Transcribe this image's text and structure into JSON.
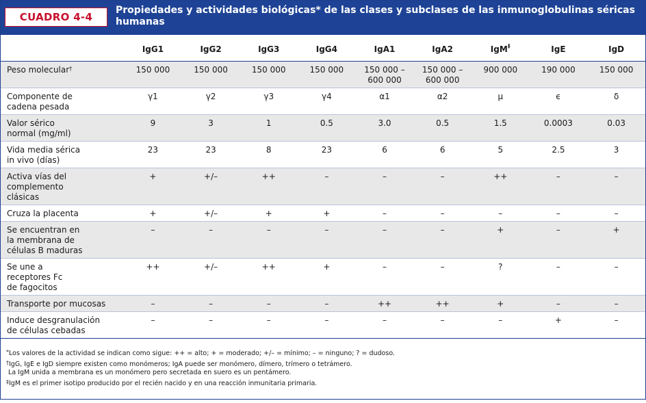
{
  "header": {
    "label": "CUADRO 4-4",
    "title": "Propiedades y actividades biológicas* de las clases y subclases de las inmunoglobulinas séricas humanas"
  },
  "table": {
    "columns": [
      {
        "label": "IgG1",
        "sup": ""
      },
      {
        "label": "IgG2",
        "sup": ""
      },
      {
        "label": "IgG3",
        "sup": ""
      },
      {
        "label": "IgG4",
        "sup": ""
      },
      {
        "label": "IgA1",
        "sup": ""
      },
      {
        "label": "IgA2",
        "sup": ""
      },
      {
        "label": "IgM",
        "sup": "‡"
      },
      {
        "label": "IgE",
        "sup": ""
      },
      {
        "label": "IgD",
        "sup": ""
      }
    ],
    "rows": [
      {
        "label": "Peso molecular",
        "sup": "†",
        "shaded": true,
        "values": [
          "150 000",
          "150 000",
          "150 000",
          "150 000",
          "150 000 –\n600 000",
          "150 000 –\n600 000",
          "900 000",
          "190 000",
          "150 000"
        ]
      },
      {
        "label": "Componente de\ncadena pesada",
        "sup": "",
        "shaded": false,
        "values": [
          "γ1",
          "γ2",
          "γ3",
          "γ4",
          "α1",
          "α2",
          "μ",
          "ϵ",
          "δ"
        ]
      },
      {
        "label": "Valor sérico\nnormal (mg/ml)",
        "sup": "",
        "shaded": true,
        "values": [
          "9",
          "3",
          "1",
          "0.5",
          "3.0",
          "0.5",
          "1.5",
          "0.0003",
          "0.03"
        ]
      },
      {
        "label": "Vida media sérica\nin vivo (días)",
        "sup": "",
        "shaded": false,
        "values": [
          "23",
          "23",
          "8",
          "23",
          "6",
          "6",
          "5",
          "2.5",
          "3"
        ]
      },
      {
        "label": "Activa vías del\ncomplemento\nclásicas",
        "sup": "",
        "shaded": true,
        "values": [
          "+",
          "+/–",
          "++",
          "–",
          "–",
          "–",
          "++",
          "–",
          "–"
        ]
      },
      {
        "label": "Cruza la placenta",
        "sup": "",
        "shaded": false,
        "values": [
          "+",
          "+/–",
          "+",
          "+",
          "–",
          "–",
          "–",
          "–",
          "–"
        ]
      },
      {
        "label": "Se encuentran en\nla membrana de\ncélulas B maduras",
        "sup": "",
        "shaded": true,
        "values": [
          "–",
          "–",
          "–",
          "–",
          "–",
          "–",
          "+",
          "–",
          "+"
        ]
      },
      {
        "label": "Se une a\nreceptores Fc\nde fagocitos",
        "sup": "",
        "shaded": false,
        "values": [
          "++",
          "+/–",
          "++",
          "+",
          "–",
          "–",
          "?",
          "–",
          "–"
        ]
      },
      {
        "label": "Transporte por mucosas",
        "sup": "",
        "shaded": true,
        "values": [
          "–",
          "–",
          "–",
          "–",
          "++",
          "++",
          "+",
          "–",
          "–"
        ]
      },
      {
        "label": "Induce desgranulación\nde células cebadas",
        "sup": "",
        "shaded": false,
        "values": [
          "–",
          "–",
          "–",
          "–",
          "–",
          "–",
          "–",
          "+",
          "–"
        ]
      }
    ]
  },
  "footnotes": [
    {
      "mark": "*",
      "text": "Los valores de la actividad se indican como sigue: ++ = alto; + = moderado; +/– = mínimo; – = ninguno; ? = dudoso."
    },
    {
      "mark": "†",
      "text": "IgG, IgE e IgD siempre existen como monómeros; IgA puede ser monómero, dímero, trímero o tetrámero.\n La IgM unida a membrana es un monómero pero secretada en suero es un pentámero."
    },
    {
      "mark": "‡",
      "text": "IgM es el primer isotipo producido por el recién nacido y en una reacción inmunitaria primaria."
    }
  ],
  "colors": {
    "header_bg": "#1e4396",
    "label_red": "#c8102e",
    "row_shade": "#e8e8e8"
  }
}
